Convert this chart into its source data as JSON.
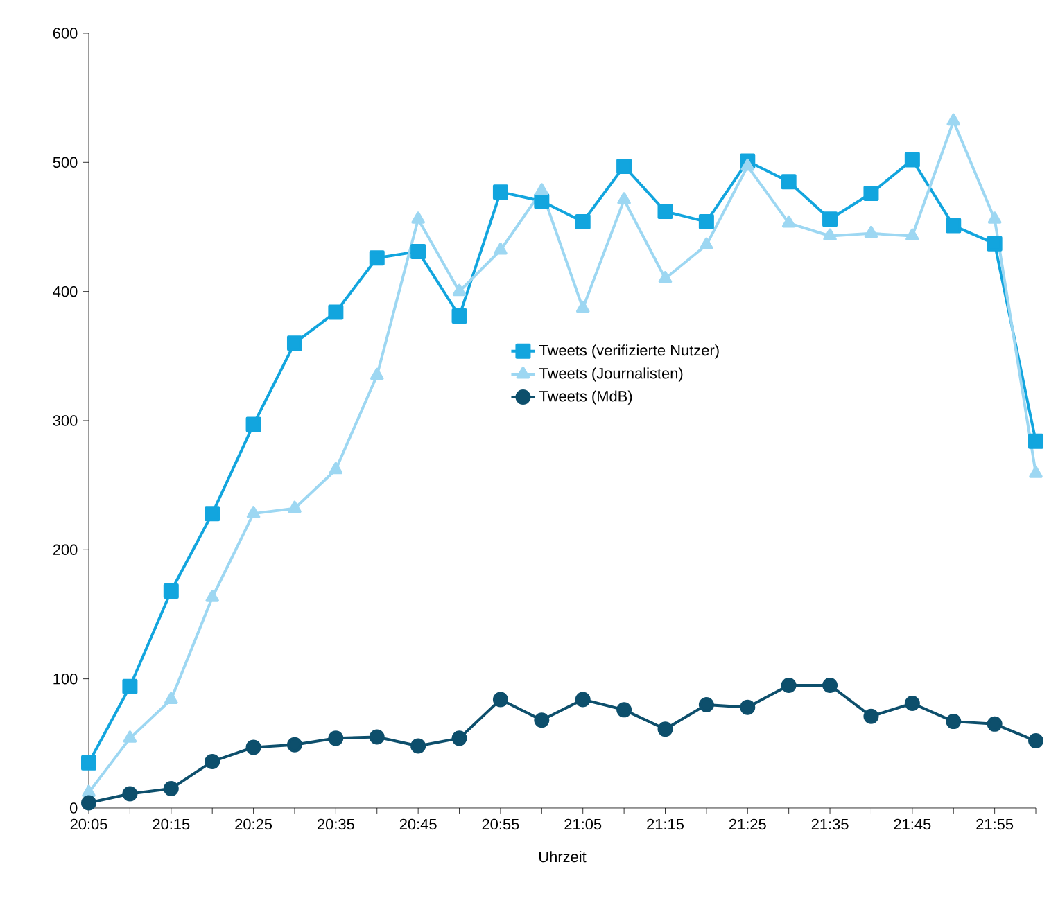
{
  "chart_data": {
    "type": "line",
    "xlabel": "Uhrzeit",
    "categories": [
      "20:05",
      null,
      "20:15",
      null,
      "20:25",
      null,
      "20:35",
      null,
      "20:45",
      null,
      "20:55",
      null,
      "21:05",
      null,
      "21:15",
      null,
      "21:25",
      null,
      "21:35",
      null,
      "21:45",
      null,
      "21:55",
      null
    ],
    "series": [
      {
        "name": "Tweets (verifizierte Nutzer)",
        "color": "#12a5de",
        "marker": "square",
        "values": [
          35,
          94,
          168,
          228,
          297,
          360,
          384,
          426,
          431,
          381,
          477,
          470,
          454,
          497,
          462,
          454,
          501,
          485,
          456,
          476,
          502,
          451,
          437,
          284
        ]
      },
      {
        "name": "Tweets (Journalisten)",
        "color": "#9dd7f2",
        "marker": "triangle",
        "values": [
          12,
          54,
          84,
          163,
          228,
          232,
          262,
          335,
          456,
          400,
          432,
          478,
          387,
          471,
          410,
          436,
          497,
          453,
          443,
          445,
          443,
          532,
          456,
          259
        ]
      },
      {
        "name": "Tweets (MdB)",
        "color": "#0d4f6c",
        "marker": "circle",
        "values": [
          4,
          11,
          15,
          36,
          47,
          49,
          54,
          55,
          48,
          54,
          84,
          68,
          84,
          76,
          61,
          80,
          78,
          95,
          95,
          71,
          81,
          67,
          65,
          52
        ]
      }
    ],
    "ylim": [
      0,
      600
    ],
    "yticks": [
      0,
      100,
      200,
      300,
      400,
      500,
      600
    ],
    "grid": false,
    "legend": "center",
    "line_style": "solid"
  }
}
